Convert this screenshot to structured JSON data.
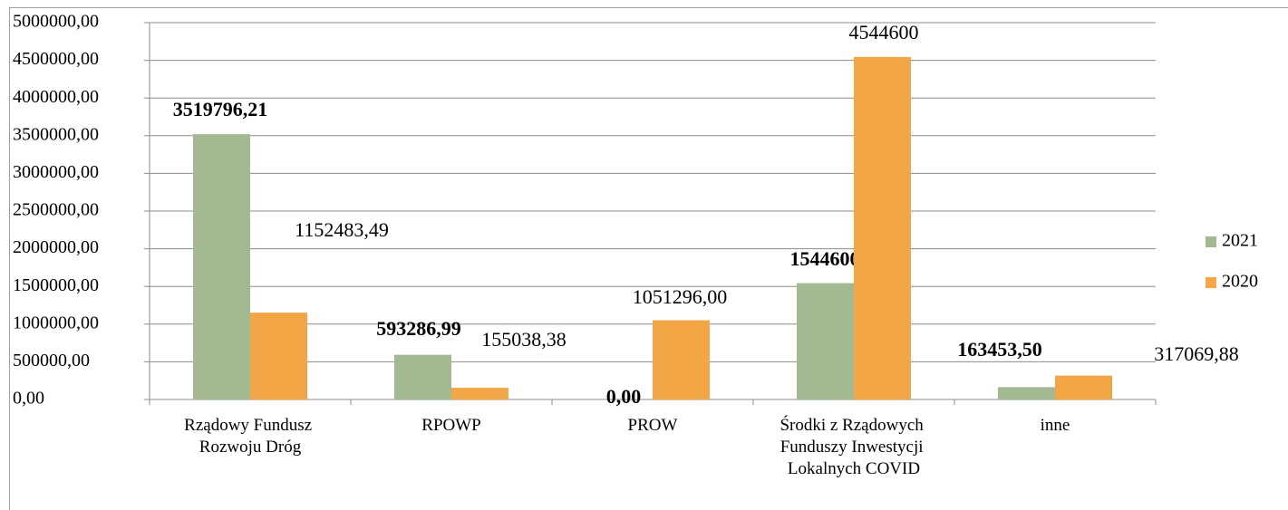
{
  "chart_data": {
    "type": "bar",
    "categories": [
      "Rządowy Fundusz Rozwoju Dróg",
      "RPOWP",
      "PROW",
      "Środki z Rządowych Funduszy Inwestycji Lokalnych COVID",
      "inne"
    ],
    "series": [
      {
        "name": "2021",
        "color": "#a2b992",
        "values": [
          3519796.21,
          593286.99,
          0,
          1544600,
          163453.5
        ],
        "value_labels": [
          "3519796,21",
          "593286,99",
          "0,00",
          "1544600",
          "163453,50"
        ]
      },
      {
        "name": "2020",
        "color": "#f3a646",
        "values": [
          1152483.49,
          155038.38,
          1051296,
          4544600,
          317069.88
        ],
        "value_labels": [
          "1152483,49",
          "155038,38",
          "1051296,00",
          "4544600",
          "317069,88"
        ]
      }
    ],
    "ylim": [
      0,
      5000000
    ],
    "yticks": [
      {
        "value": 0,
        "label": "0,00"
      },
      {
        "value": 500000,
        "label": "500000,00"
      },
      {
        "value": 1000000,
        "label": "1000000,00"
      },
      {
        "value": 1500000,
        "label": "1500000,00"
      },
      {
        "value": 2000000,
        "label": "2000000,00"
      },
      {
        "value": 2500000,
        "label": "2500000,00"
      },
      {
        "value": 3000000,
        "label": "3000000,00"
      },
      {
        "value": 3500000,
        "label": "3500000,00"
      },
      {
        "value": 4000000,
        "label": "4000000,00"
      },
      {
        "value": 4500000,
        "label": "4500000,00"
      },
      {
        "value": 5000000,
        "label": "5000000,00"
      }
    ],
    "grid": true,
    "legend": "right"
  }
}
